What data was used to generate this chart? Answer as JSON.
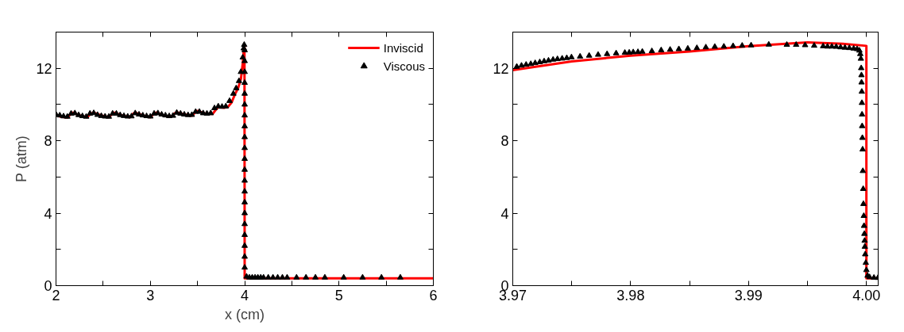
{
  "chart_data": [
    {
      "type": "line",
      "xlabel": "x (cm)",
      "ylabel": "P (atm)",
      "xlim": [
        2,
        6
      ],
      "ylim": [
        0,
        14
      ],
      "xticks": [
        2,
        {
          "value": 2.5,
          "label": null
        },
        3,
        {
          "value": 3.5,
          "label": null
        },
        4,
        {
          "value": 4.5,
          "label": null
        },
        5,
        {
          "value": 5.5,
          "label": null
        },
        6
      ],
      "yticks": [
        0,
        {
          "value": 2,
          "label": null
        },
        4,
        {
          "value": 6,
          "label": null
        },
        8,
        {
          "value": 10,
          "label": null
        },
        12
      ],
      "grid": false,
      "legend": "top right",
      "series": [
        {
          "name": "Inviscid",
          "color": "#ff0000",
          "marker": "none",
          "line_style": "solid",
          "x": [
            2.0,
            2.05,
            2.12,
            2.16,
            2.18,
            2.25,
            2.33,
            2.37,
            2.4,
            2.48,
            2.56,
            2.6,
            2.62,
            2.7,
            2.78,
            2.82,
            2.84,
            2.92,
            3.0,
            3.04,
            3.06,
            3.14,
            3.22,
            3.26,
            3.28,
            3.36,
            3.44,
            3.48,
            3.5,
            3.58,
            3.66,
            3.7,
            3.72,
            3.78,
            3.82,
            3.86,
            3.9,
            3.93,
            3.96,
            3.98,
            3.995,
            3.998,
            4.0,
            6.0
          ],
          "values": [
            9.42,
            9.33,
            9.28,
            9.5,
            9.55,
            9.4,
            9.3,
            9.5,
            9.55,
            9.4,
            9.3,
            9.5,
            9.55,
            9.4,
            9.3,
            9.5,
            9.55,
            9.4,
            9.3,
            9.5,
            9.55,
            9.4,
            9.32,
            9.52,
            9.57,
            9.45,
            9.38,
            9.58,
            9.65,
            9.5,
            9.48,
            9.75,
            9.85,
            9.82,
            9.85,
            10.1,
            10.6,
            10.9,
            11.4,
            12.3,
            13.3,
            13.2,
            0.4,
            0.4
          ]
        },
        {
          "name": "Viscous",
          "type": "scatter",
          "color": "#000000",
          "marker": "triangle",
          "x": [
            2.0,
            2.04,
            2.08,
            2.12,
            2.16,
            2.2,
            2.24,
            2.28,
            2.32,
            2.36,
            2.4,
            2.44,
            2.48,
            2.52,
            2.56,
            2.6,
            2.64,
            2.68,
            2.72,
            2.76,
            2.8,
            2.84,
            2.88,
            2.92,
            2.96,
            3.0,
            3.04,
            3.08,
            3.12,
            3.16,
            3.2,
            3.24,
            3.28,
            3.32,
            3.36,
            3.4,
            3.44,
            3.48,
            3.52,
            3.56,
            3.6,
            3.64,
            3.68,
            3.72,
            3.76,
            3.8,
            3.84,
            3.88,
            3.91,
            3.94,
            3.96,
            3.98,
            3.99,
            3.995,
            4.0,
            4.0,
            4.0,
            4.0,
            4.0,
            4.0,
            4.0,
            4.0,
            4.0,
            4.0,
            4.0,
            4.0,
            4.0,
            4.0,
            4.0,
            4.0,
            4.0,
            4.0,
            4.0,
            4.0,
            4.0,
            4.02,
            4.05,
            4.08,
            4.11,
            4.14,
            4.17,
            4.2,
            4.25,
            4.3,
            4.35,
            4.4,
            4.45,
            4.55,
            4.65,
            4.75,
            4.85,
            5.05,
            5.25,
            5.45,
            5.65
          ],
          "values": [
            9.45,
            9.4,
            9.35,
            9.33,
            9.5,
            9.52,
            9.42,
            9.36,
            9.33,
            9.5,
            9.53,
            9.43,
            9.37,
            9.34,
            9.33,
            9.5,
            9.5,
            9.42,
            9.37,
            9.34,
            9.35,
            9.52,
            9.45,
            9.4,
            9.36,
            9.34,
            9.5,
            9.52,
            9.45,
            9.4,
            9.36,
            9.38,
            9.55,
            9.5,
            9.45,
            9.42,
            9.43,
            9.6,
            9.6,
            9.52,
            9.5,
            9.52,
            9.8,
            9.9,
            9.88,
            9.9,
            10.2,
            10.6,
            10.9,
            11.3,
            11.8,
            12.6,
            13.1,
            13.3,
            13.0,
            12.4,
            11.8,
            11.2,
            10.6,
            10.0,
            9.4,
            8.8,
            8.2,
            7.6,
            7.0,
            6.4,
            5.8,
            5.2,
            4.6,
            4.0,
            3.4,
            2.8,
            2.2,
            1.6,
            1.0,
            0.5,
            0.45,
            0.45,
            0.45,
            0.45,
            0.45,
            0.45,
            0.45,
            0.45,
            0.45,
            0.45,
            0.45,
            0.45,
            0.45,
            0.45,
            0.45,
            0.45,
            0.45,
            0.45,
            0.45
          ]
        }
      ]
    },
    {
      "type": "line",
      "xlim": [
        3.97,
        4.001
      ],
      "ylim": [
        0,
        14
      ],
      "xticks": [
        3.97,
        {
          "value": 3.975,
          "label": null
        },
        3.98,
        {
          "value": 3.985,
          "label": null
        },
        3.99,
        {
          "value": 3.995,
          "label": null
        },
        {
          "value": 4.0,
          "label": "4.00"
        }
      ],
      "yticks": [
        0,
        {
          "value": 2,
          "label": null
        },
        4,
        {
          "value": 6,
          "label": null
        },
        8,
        {
          "value": 10,
          "label": null
        },
        12
      ],
      "grid": false,
      "series": [
        {
          "color": "#ff0000",
          "marker": "none",
          "line_style": "solid",
          "x": [
            3.97,
            3.975,
            3.98,
            3.985,
            3.99,
            3.995,
            3.998,
            4.0,
            4.0,
            4.001
          ],
          "values": [
            11.9,
            12.38,
            12.7,
            12.93,
            13.22,
            13.43,
            13.35,
            13.24,
            0.4,
            0.4
          ]
        },
        {
          "type": "scatter",
          "color": "#000000",
          "marker": "triangle",
          "x": [
            3.97034,
            3.97074,
            3.97113,
            3.97153,
            3.9719,
            3.97229,
            3.97266,
            3.97303,
            3.97342,
            3.97379,
            3.97419,
            3.97458,
            3.97498,
            3.97571,
            3.97648,
            3.97724,
            3.978,
            3.97877,
            3.97951,
            3.97988,
            3.98022,
            3.98062,
            3.98099,
            3.9818,
            3.98259,
            3.98335,
            3.98409,
            3.98485,
            3.98562,
            3.98638,
            3.98714,
            3.98791,
            3.98869,
            3.98946,
            3.99022,
            3.99172,
            3.99325,
            3.99404,
            3.9948,
            3.99557,
            3.99633,
            3.9967,
            3.99707,
            3.99744,
            3.99781,
            3.99818,
            3.99855,
            3.99892,
            3.99921,
            3.99941,
            3.99948,
            3.99953,
            3.99956,
            3.99958,
            3.99959,
            3.99961,
            3.99962,
            3.99963,
            3.99964,
            3.99966,
            3.99968,
            3.9997,
            3.99973,
            3.99975,
            3.99978,
            3.9998,
            3.99983,
            3.99985,
            3.99987,
            3.9999,
            3.99995,
            4.0,
            4.0001,
            4.00027,
            4.00064,
            4.00098
          ],
          "values": [
            12.09,
            12.15,
            12.2,
            12.24,
            12.29,
            12.34,
            12.39,
            12.43,
            12.48,
            12.51,
            12.54,
            12.57,
            12.61,
            12.65,
            12.7,
            12.75,
            12.79,
            12.83,
            12.86,
            12.87,
            12.89,
            12.9,
            12.92,
            12.95,
            13.0,
            13.03,
            13.06,
            13.09,
            13.12,
            13.16,
            13.19,
            13.2,
            13.23,
            13.25,
            13.27,
            13.31,
            13.3,
            13.3,
            13.28,
            13.25,
            13.22,
            13.2,
            13.2,
            13.19,
            13.16,
            13.14,
            13.12,
            13.09,
            13.06,
            12.98,
            12.79,
            12.53,
            12.01,
            11.62,
            11.22,
            10.71,
            10.09,
            9.45,
            8.81,
            8.16,
            7.52,
            6.33,
            5.34,
            4.51,
            3.85,
            3.3,
            2.86,
            2.48,
            2.15,
            1.73,
            1.26,
            0.86,
            0.55,
            0.47,
            0.44,
            0.43
          ]
        }
      ]
    }
  ]
}
